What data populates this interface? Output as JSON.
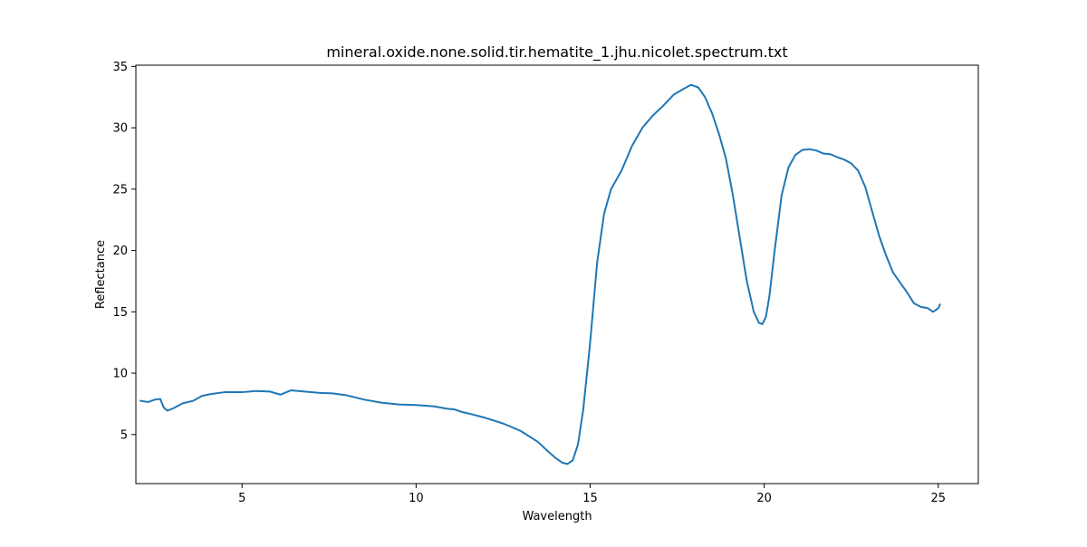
{
  "chart_data": {
    "type": "line",
    "title": "mineral.oxide.none.solid.tir.hematite_1.jhu.nicolet.spectrum.txt",
    "xlabel": "Wavelength",
    "ylabel": "Reflectance",
    "xlim": [
      1.95,
      26.15
    ],
    "ylim": [
      1.0,
      35.1
    ],
    "xticks": [
      5,
      10,
      15,
      20,
      25
    ],
    "yticks": [
      5,
      10,
      15,
      20,
      25,
      30,
      35
    ],
    "grid": false,
    "legend": "none",
    "series": [
      {
        "color": "#1f77b4",
        "x": [
          2.08,
          2.3,
          2.5,
          2.65,
          2.75,
          2.85,
          3.0,
          3.3,
          3.6,
          3.85,
          4.1,
          4.5,
          5.0,
          5.4,
          5.8,
          6.1,
          6.4,
          6.8,
          7.2,
          7.6,
          8.0,
          8.5,
          9.0,
          9.5,
          10.0,
          10.5,
          10.9,
          11.1,
          11.3,
          11.6,
          12.0,
          12.5,
          13.0,
          13.5,
          13.8,
          14.0,
          14.2,
          14.35,
          14.5,
          14.65,
          14.8,
          15.0,
          15.2,
          15.4,
          15.6,
          15.9,
          16.2,
          16.5,
          16.8,
          17.1,
          17.4,
          17.7,
          17.9,
          18.1,
          18.3,
          18.5,
          18.7,
          18.9,
          19.1,
          19.3,
          19.5,
          19.7,
          19.85,
          19.95,
          20.05,
          20.15,
          20.3,
          20.5,
          20.7,
          20.9,
          21.1,
          21.3,
          21.5,
          21.7,
          21.9,
          22.1,
          22.3,
          22.5,
          22.7,
          22.9,
          23.1,
          23.3,
          23.5,
          23.7,
          23.9,
          24.1,
          24.3,
          24.5,
          24.7,
          24.85,
          25.0,
          25.05
        ],
        "y": [
          7.75,
          7.65,
          7.85,
          7.9,
          7.2,
          6.95,
          7.1,
          7.55,
          7.75,
          8.15,
          8.3,
          8.45,
          8.45,
          8.55,
          8.5,
          8.25,
          8.6,
          8.5,
          8.4,
          8.35,
          8.2,
          7.85,
          7.6,
          7.45,
          7.4,
          7.3,
          7.1,
          7.05,
          6.85,
          6.65,
          6.35,
          5.9,
          5.3,
          4.4,
          3.6,
          3.1,
          2.7,
          2.6,
          2.9,
          4.2,
          7.0,
          12.5,
          19.0,
          23.0,
          25.0,
          26.5,
          28.5,
          30.0,
          31.0,
          31.8,
          32.7,
          33.2,
          33.5,
          33.3,
          32.5,
          31.2,
          29.5,
          27.5,
          24.5,
          21.0,
          17.5,
          15.0,
          14.1,
          14.0,
          14.6,
          16.3,
          20.0,
          24.5,
          26.8,
          27.8,
          28.2,
          28.25,
          28.15,
          27.9,
          27.85,
          27.6,
          27.4,
          27.1,
          26.5,
          25.2,
          23.2,
          21.2,
          19.6,
          18.2,
          17.4,
          16.6,
          15.7,
          15.4,
          15.3,
          15.0,
          15.3,
          15.6
        ]
      }
    ]
  }
}
